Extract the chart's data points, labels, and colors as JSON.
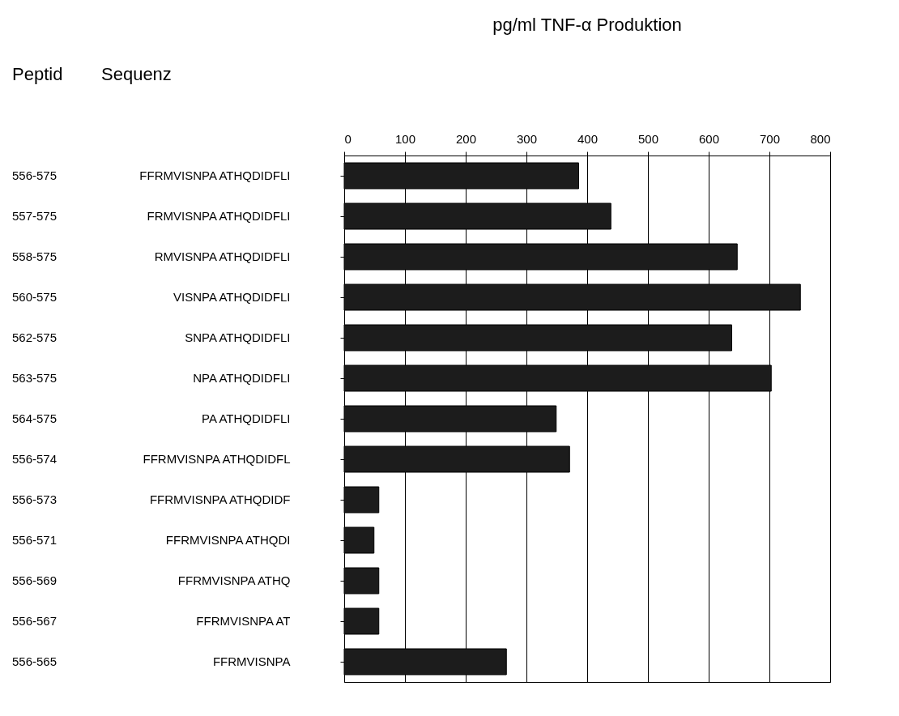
{
  "chart_data": {
    "type": "bar",
    "orientation": "horizontal",
    "title": "pg/ml TNF-α Produktion",
    "annotations": [
      "Peptid",
      "Sequenz"
    ],
    "y2_categories": [
      "556-575",
      "557-575",
      "558-575",
      "560-575",
      "562-575",
      "563-575",
      "564-575",
      "556-574",
      "556-573",
      "556-571",
      "556-569",
      "556-567",
      "556-565"
    ],
    "categories": [
      "FFRMVISNPA ATHQDIDFLI",
      "FRMVISNPA ATHQDIDFLI",
      "RMVISNPA ATHQDIDFLI",
      "VISNPA ATHQDIDFLI",
      "SNPA ATHQDIDFLI",
      "NPA ATHQDIDFLI",
      "PA ATHQDIDFLI",
      "FFRMVISNPA ATHQDIDFL",
      "FFRMVISNPA ATHQDIDF",
      "FFRMVISNPA ATHQDI",
      "FFRMVISNPA ATHQ",
      "FFRMVISNPA AT",
      "FFRMVISNPA"
    ],
    "values": [
      386,
      439,
      647,
      751,
      638,
      703,
      349,
      371,
      57,
      49,
      57,
      57,
      267
    ],
    "color": "#1c1c1c",
    "xlim": [
      0,
      800
    ],
    "xticks": [
      0,
      100,
      200,
      300,
      400,
      500,
      600,
      700,
      800
    ],
    "grid": "x"
  }
}
